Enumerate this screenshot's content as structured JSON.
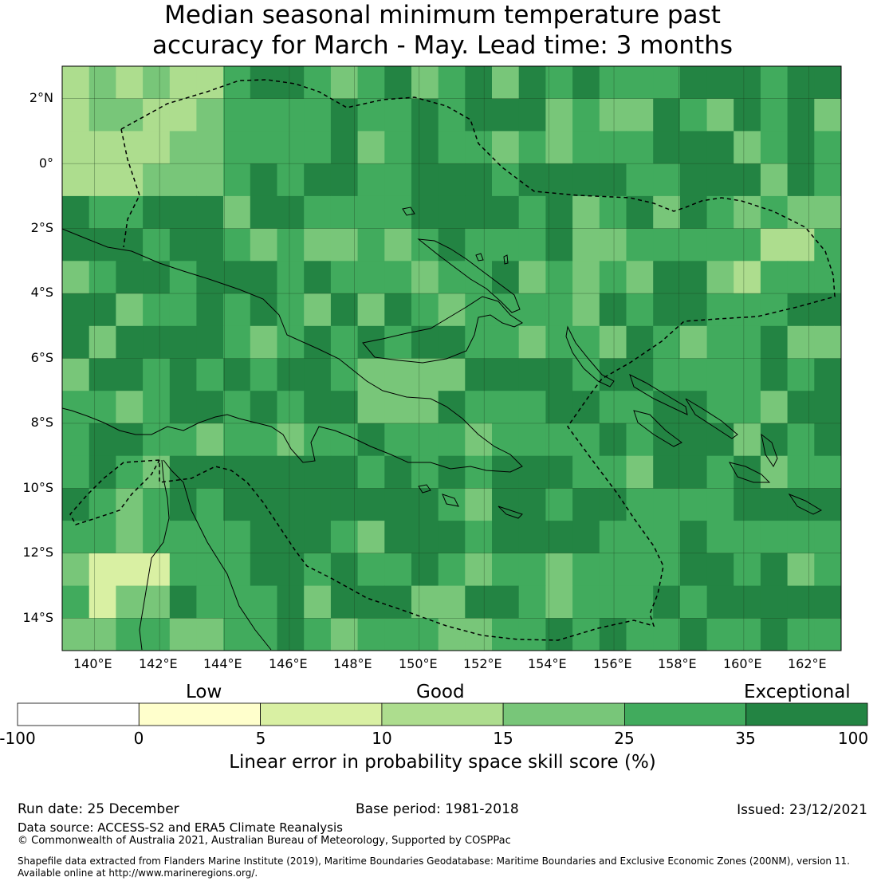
{
  "title": {
    "line1": "Median seasonal minimum temperature past",
    "line2": "accuracy for March - May. Lead time: 3 months"
  },
  "map": {
    "region": "Papua New Guinea and surrounding waters",
    "lat_labels": [
      "2°N",
      "0°",
      "2°S",
      "4°S",
      "6°S",
      "8°S",
      "10°S",
      "12°S",
      "14°S"
    ],
    "lon_labels": [
      "140°E",
      "142°E",
      "144°E",
      "146°E",
      "148°E",
      "150°E",
      "152°E",
      "154°E",
      "156°E",
      "158°E",
      "160°E",
      "162°E"
    ],
    "extent": {
      "lon_min": 139,
      "lon_max": 163,
      "lat_min": -15,
      "lat_max": 3
    },
    "eez_style": "dashed",
    "colors": {
      "land_outline": "#000000",
      "grid": "#1a3a1a"
    }
  },
  "colorbar": {
    "categories": [
      "Low",
      "Good",
      "Exceptional"
    ],
    "tick_labels": [
      "-100",
      "0",
      "5",
      "10",
      "15",
      "25",
      "35",
      "100"
    ],
    "bins": [
      {
        "from": -100,
        "to": 0,
        "color": "#ffffff"
      },
      {
        "from": 0,
        "to": 5,
        "color": "#ffffcc"
      },
      {
        "from": 5,
        "to": 10,
        "color": "#d9f0a3"
      },
      {
        "from": 10,
        "to": 15,
        "color": "#addd8e"
      },
      {
        "from": 15,
        "to": 25,
        "color": "#78c679"
      },
      {
        "from": 25,
        "to": 35,
        "color": "#41ab5d"
      },
      {
        "from": 35,
        "to": 100,
        "color": "#238443"
      }
    ],
    "label": "Linear error in probability space skill score (%)"
  },
  "footer": {
    "run_date": "Run date: 25 December",
    "base_period": "Base period: 1981-2018",
    "issued": "Issued: 23/12/2021",
    "data_source": "Data source: ACCESS-S2 and ERA5 Climate Reanalysis",
    "copyright": "© Commonwealth of Australia 2021, Australian Bureau of Meteorology, Supported by COSPPac",
    "shapefile_line1": "Shapefile data extracted from Flanders Marine Institute (2019), Maritime Boundaries Geodatabase: Maritime Boundaries and Exclusive Economic Zones (200NM), version 11.",
    "shapefile_line2": "Available online at http://www.marineregions.org/."
  }
}
